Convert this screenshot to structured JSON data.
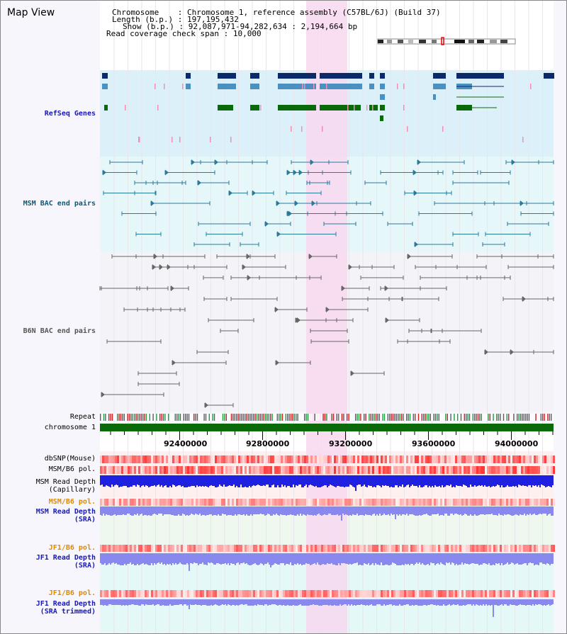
{
  "title": "Map View",
  "info": {
    "chromosome_label": "Chromosome",
    "chromosome_value": "Chromosome 1, reference assembly (C57BL/6J) (Build 37)",
    "length_label": "Length (b.p.)",
    "length_value": "197,195,432",
    "show_label": "Show (b.p.)",
    "show_value": "92,087,971-94,282,634 : 2,194,664 bp",
    "coverage_label": "Read coverage check span",
    "coverage_value": "10,000"
  },
  "tracks": {
    "refseq": "RefSeq Genes",
    "msm_bac": "MSM BAC end pairs",
    "b6n_bac": "B6N BAC end pairs",
    "repeat": "Repeat",
    "chromosome": "chromosome 1",
    "dbsnp": "dbSNP(Mouse)",
    "msm_b6_pol": "MSM/B6 pol.",
    "msm_depth_cap_1": "MSM Read Depth",
    "msm_depth_cap_2": "(Capillary)",
    "msm_b6_pol_2": "MSM/B6 pol.",
    "msm_depth_sra_1": "MSM Read Depth",
    "msm_depth_sra_2": "(SRA)",
    "jf1_pol_1": "JF1/B6 pol.",
    "jf1_depth_1": "JF1 Read Depth",
    "jf1_depth_2": "(SRA)",
    "jf1_pol_2": "JF1/B6 pol.",
    "jf1_trim_1": "JF1 Read Depth",
    "jf1_trim_2": "(SRA trimmed)"
  },
  "axis_ticks": [
    "92400000",
    "92800000",
    "93200000",
    "93600000",
    "94000000"
  ],
  "colors": {
    "refseq_bg": "#dcf0fa",
    "gene_dark": "#0a2a6a",
    "gene_mid": "#4a90c0",
    "gene_green": "#0a6a0a",
    "msm_line": "#0a5a7a",
    "b6n_line": "#666666",
    "highlight": "#f8d8f0",
    "chrom_bar": "#0a6a0a",
    "depth_blue": "#2020e0",
    "depth_light": "#8888ee"
  }
}
